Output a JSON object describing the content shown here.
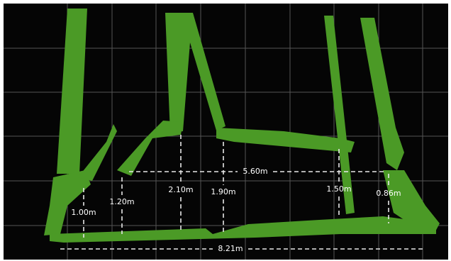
{
  "map": {
    "measurements": [
      "1.00m",
      "1.20m",
      "2.10m",
      "1.90m",
      "5.60m",
      "1.50m",
      "0.86m",
      "8.21m"
    ]
  }
}
